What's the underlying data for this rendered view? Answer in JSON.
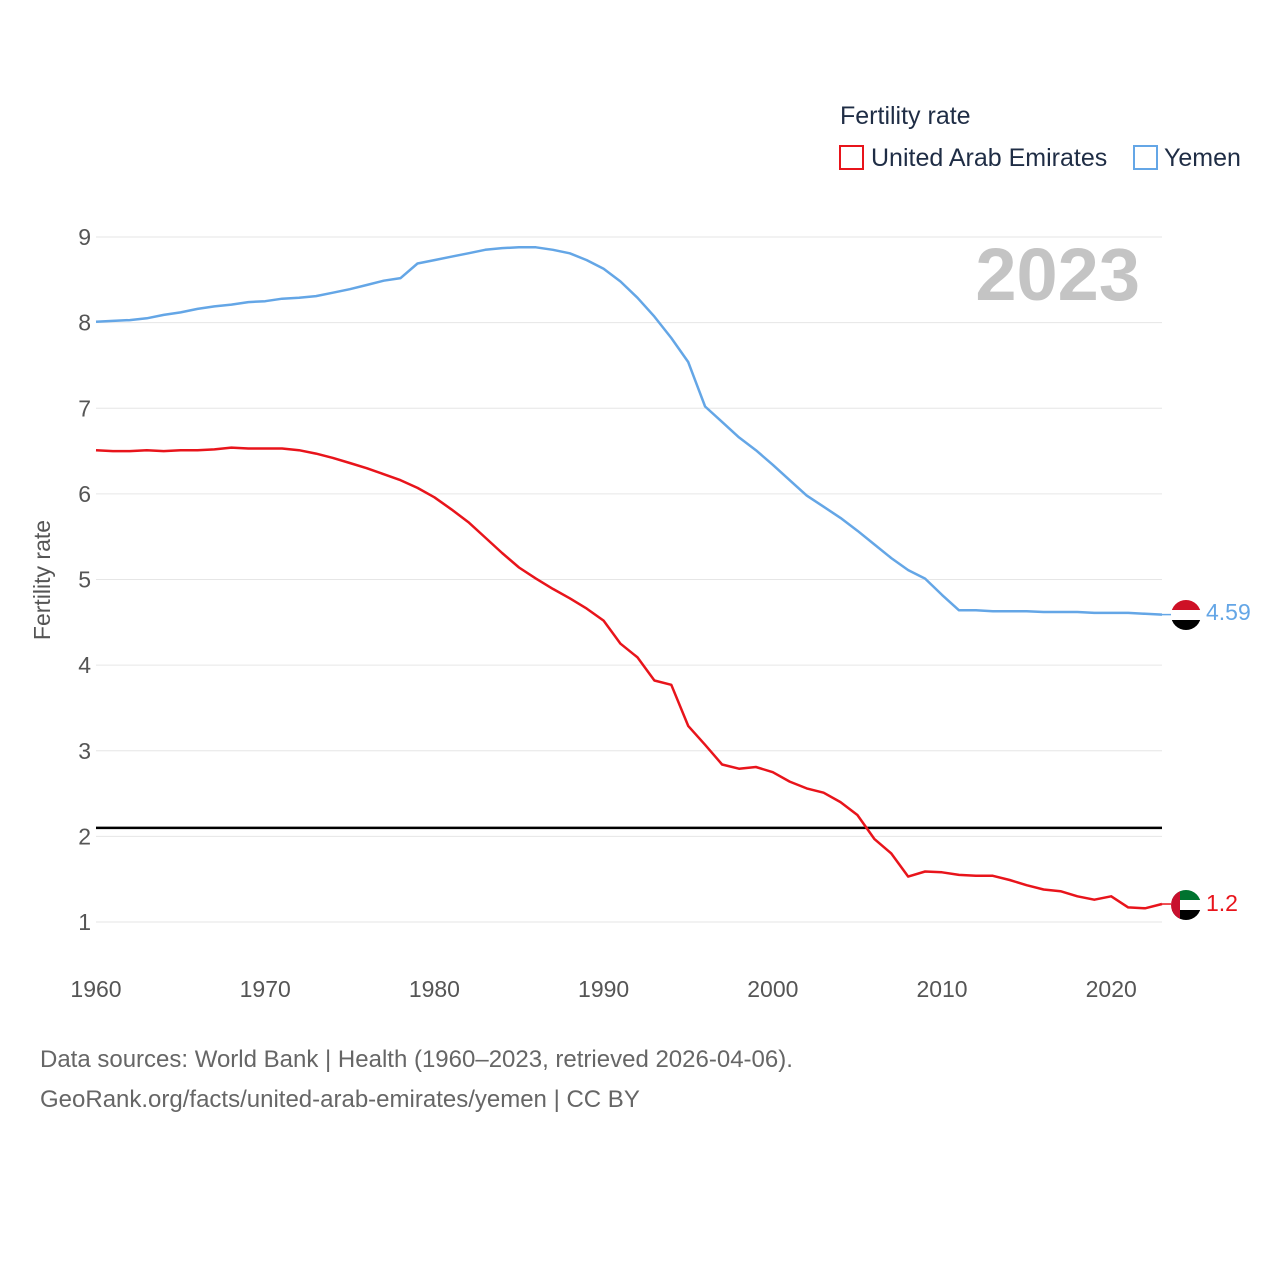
{
  "chart_data": {
    "type": "line",
    "title": "",
    "legend_title": "Fertility rate",
    "ylabel": "Fertility rate",
    "xlabel": "",
    "year_label": "2023",
    "xlim": [
      1960,
      2023
    ],
    "ylim": [
      1,
      9
    ],
    "x_ticks": [
      1960,
      1970,
      1980,
      1990,
      2000,
      2010,
      2020
    ],
    "y_ticks": [
      1,
      2,
      3,
      4,
      5,
      6,
      7,
      8,
      9
    ],
    "reference_line": {
      "y": 2.1,
      "color": "#000000"
    },
    "grid": true,
    "legend_position": "top-right",
    "x": [
      1960,
      1961,
      1962,
      1963,
      1964,
      1965,
      1966,
      1967,
      1968,
      1969,
      1970,
      1971,
      1972,
      1973,
      1974,
      1975,
      1976,
      1977,
      1978,
      1979,
      1980,
      1981,
      1982,
      1983,
      1984,
      1985,
      1986,
      1987,
      1988,
      1989,
      1990,
      1991,
      1992,
      1993,
      1994,
      1995,
      1996,
      1997,
      1998,
      1999,
      2000,
      2001,
      2002,
      2003,
      2004,
      2005,
      2006,
      2007,
      2008,
      2009,
      2010,
      2011,
      2012,
      2013,
      2014,
      2015,
      2016,
      2017,
      2018,
      2019,
      2020,
      2021,
      2022,
      2023
    ],
    "series": [
      {
        "name": "United Arab Emirates",
        "color": "#e8141b",
        "end_label": "1.2",
        "flag": "uae-flag",
        "values": [
          6.51,
          6.5,
          6.5,
          6.51,
          6.5,
          6.51,
          6.51,
          6.52,
          6.54,
          6.53,
          6.53,
          6.53,
          6.51,
          6.47,
          6.42,
          6.36,
          6.3,
          6.23,
          6.16,
          6.07,
          5.96,
          5.82,
          5.67,
          5.49,
          5.31,
          5.14,
          5.01,
          4.89,
          4.78,
          4.66,
          4.52,
          4.25,
          4.09,
          3.82,
          3.77,
          3.29,
          3.07,
          2.84,
          2.79,
          2.81,
          2.75,
          2.64,
          2.56,
          2.51,
          2.4,
          2.25,
          1.97,
          1.8,
          1.53,
          1.59,
          1.58,
          1.55,
          1.54,
          1.54,
          1.49,
          1.43,
          1.38,
          1.36,
          1.3,
          1.26,
          1.3,
          1.17,
          1.16,
          1.21
        ]
      },
      {
        "name": "Yemen",
        "color": "#64a6e6",
        "end_label": "4.59",
        "flag": "yemen-flag",
        "values": [
          8.01,
          8.02,
          8.03,
          8.05,
          8.09,
          8.12,
          8.16,
          8.19,
          8.21,
          8.24,
          8.25,
          8.28,
          8.29,
          8.31,
          8.35,
          8.39,
          8.44,
          8.49,
          8.52,
          8.69,
          8.73,
          8.77,
          8.81,
          8.85,
          8.87,
          8.88,
          8.88,
          8.85,
          8.81,
          8.73,
          8.63,
          8.48,
          8.29,
          8.07,
          7.82,
          7.54,
          7.02,
          6.84,
          6.66,
          6.51,
          6.34,
          6.16,
          5.98,
          5.85,
          5.72,
          5.57,
          5.41,
          5.25,
          5.11,
          5.01,
          4.82,
          4.64,
          4.64,
          4.63,
          4.63,
          4.63,
          4.62,
          4.62,
          4.62,
          4.61,
          4.61,
          4.61,
          4.6,
          4.59
        ]
      }
    ]
  },
  "footer": {
    "source_line": "Data sources: World Bank | Health (1960–2023, retrieved 2026-04-06).",
    "url_line": "GeoRank.org/facts/united-arab-emirates/yemen | CC BY"
  }
}
